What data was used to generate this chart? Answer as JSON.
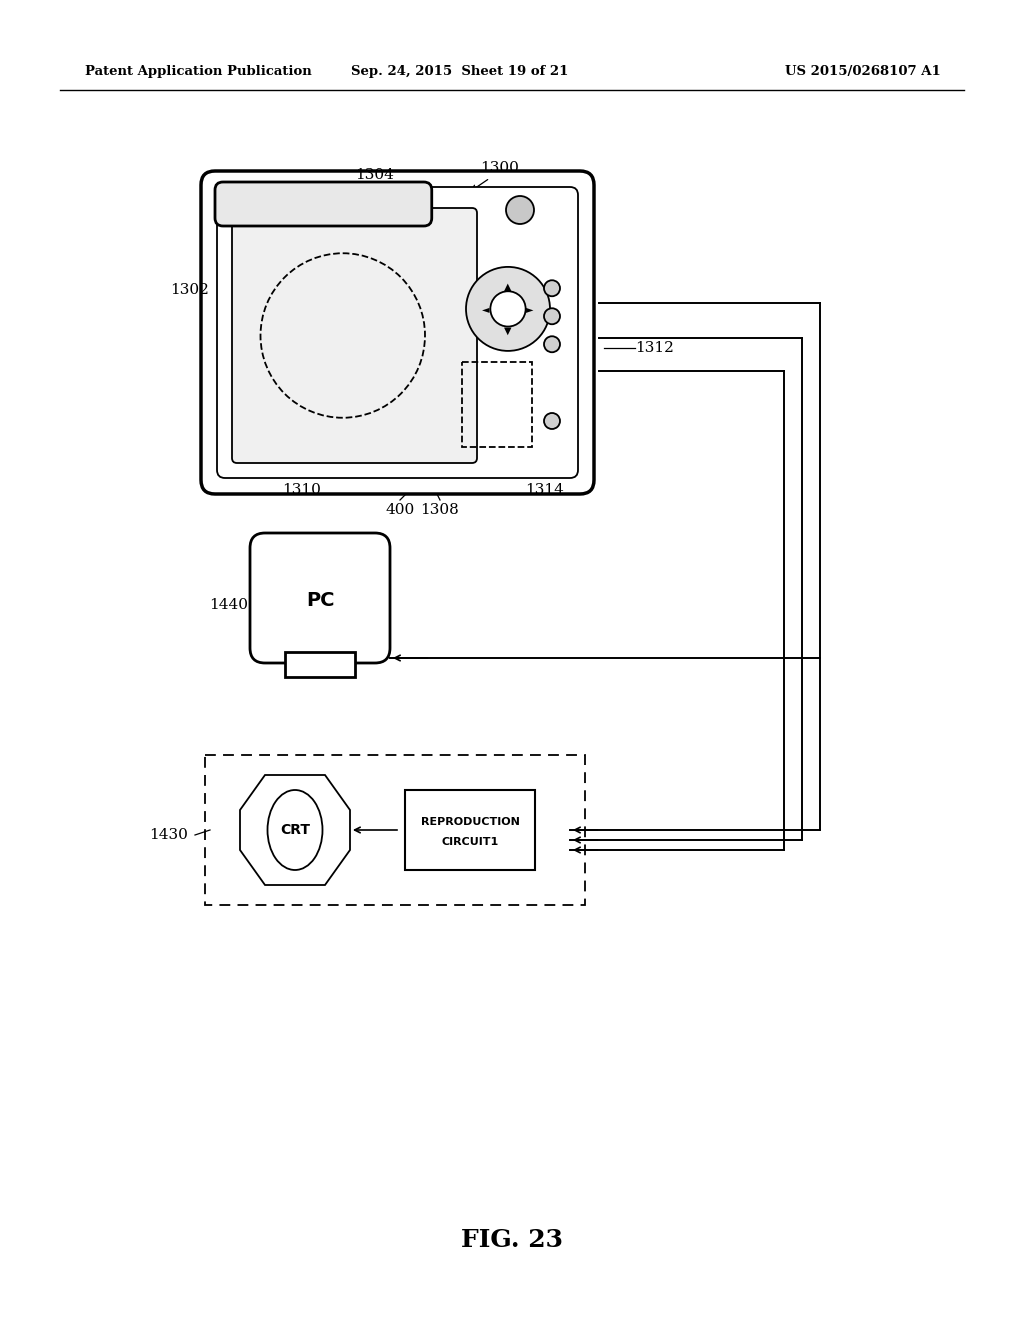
{
  "background_color": "#ffffff",
  "header_left": "Patent Application Publication",
  "header_center": "Sep. 24, 2015  Sheet 19 of 21",
  "header_right": "US 2015/0268107 A1",
  "figure_label": "FIG. 23"
}
